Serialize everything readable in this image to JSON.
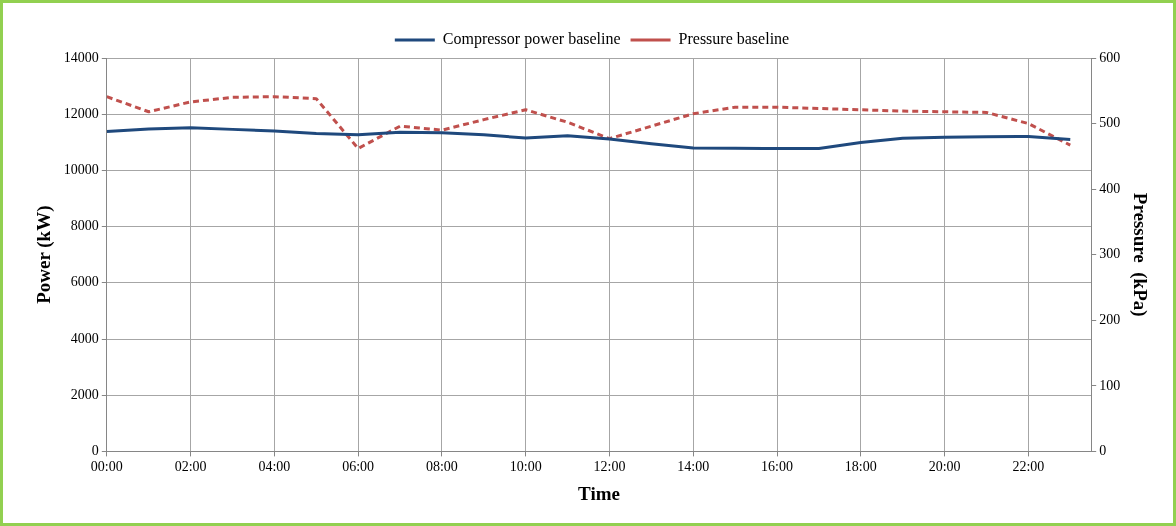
{
  "chart_data": {
    "type": "line",
    "xlabel": "Time",
    "ylabel": "Power (kW)",
    "y2label": "Pressure  (kPa)",
    "x": [
      0,
      1,
      2,
      3,
      4,
      5,
      6,
      7,
      8,
      9,
      10,
      11,
      12,
      13,
      14,
      15,
      16,
      17,
      18,
      19,
      20,
      21,
      22,
      23
    ],
    "xlim": [
      0,
      23.5
    ],
    "xticks": [
      {
        "value": 0,
        "label": "00:00"
      },
      {
        "value": 2,
        "label": "02:00"
      },
      {
        "value": 4,
        "label": "04:00"
      },
      {
        "value": 6,
        "label": "06:00"
      },
      {
        "value": 8,
        "label": "08:00"
      },
      {
        "value": 10,
        "label": "10:00"
      },
      {
        "value": 12,
        "label": "12:00"
      },
      {
        "value": 14,
        "label": "14:00"
      },
      {
        "value": 16,
        "label": "16:00"
      },
      {
        "value": 18,
        "label": "18:00"
      },
      {
        "value": 20,
        "label": "20:00"
      },
      {
        "value": 22,
        "label": "22:00"
      }
    ],
    "ylim": [
      0,
      14000
    ],
    "yticks": [
      0,
      2000,
      4000,
      6000,
      8000,
      10000,
      12000,
      14000
    ],
    "y2lim": [
      0,
      600
    ],
    "y2ticks": [
      0,
      100,
      200,
      300,
      400,
      500,
      600
    ],
    "series": [
      {
        "name": "Compressor power baseline",
        "color": "#1f497d",
        "line_style": "solid",
        "values": [
          11380,
          11470,
          11520,
          11460,
          11400,
          11310,
          11270,
          11360,
          11340,
          11270,
          11150,
          11230,
          11120,
          10950,
          10800,
          10790,
          10780,
          10780,
          10990,
          11140,
          11180,
          11200,
          11210,
          11100
        ]
      },
      {
        "name": "Pressure baseline",
        "color": "#c0504d",
        "line_style": "dashed",
        "axis": "y2",
        "values": [
          541,
          518,
          533,
          540,
          541,
          538,
          462,
          496,
          490,
          506,
          521,
          502,
          477,
          496,
          515,
          525,
          525,
          523,
          521,
          519,
          518,
          517,
          500,
          467
        ]
      }
    ],
    "grid": true,
    "legend": "top",
    "marker": "none"
  }
}
